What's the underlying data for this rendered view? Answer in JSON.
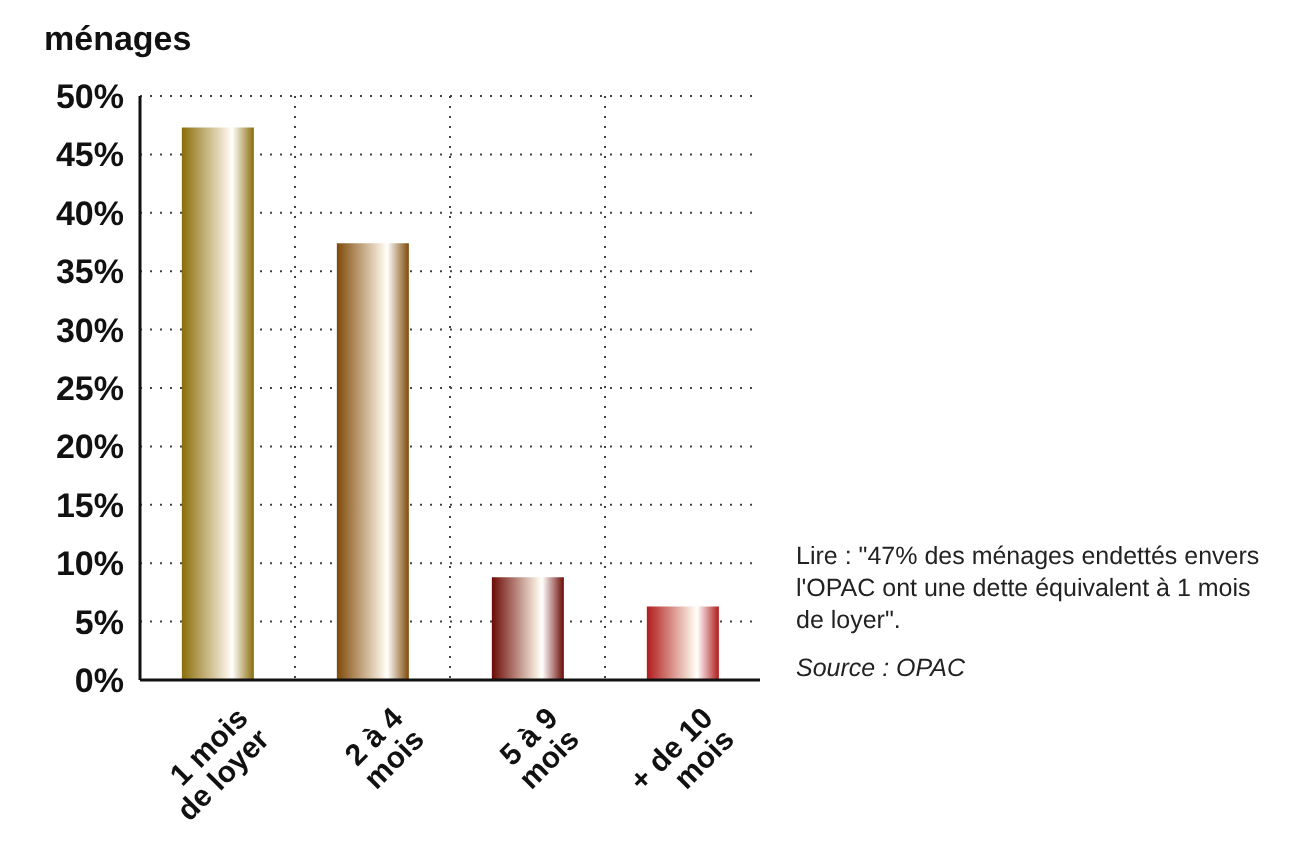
{
  "chart_data": {
    "type": "bar",
    "ylabel": "ménages",
    "categories": [
      "1 mois de loyer",
      "2 à 4 mois",
      "5 à 9 mois",
      "+ de 10 mois"
    ],
    "values": [
      47.3,
      37.4,
      8.8,
      6.3
    ],
    "colors": [
      "#8a6d0a",
      "#7f4a08",
      "#6b0a05",
      "#b01c1c"
    ],
    "ylim": [
      0,
      50
    ],
    "yticks": [
      {
        "value": 0,
        "label": "0%"
      },
      {
        "value": 5,
        "label": "5%"
      },
      {
        "value": 10,
        "label": "10%"
      },
      {
        "value": 15,
        "label": "15%"
      },
      {
        "value": 20,
        "label": "20%"
      },
      {
        "value": 25,
        "label": "25%"
      },
      {
        "value": 30,
        "label": "30%"
      },
      {
        "value": 35,
        "label": "35%"
      },
      {
        "value": 40,
        "label": "40%"
      },
      {
        "value": 45,
        "label": "45%"
      },
      {
        "value": 50,
        "label": "50%"
      }
    ],
    "grid": true,
    "annotations": [
      "Lire : \"47% des ménages endettés envers l'OPAC  ont une dette équivalent à 1 mois de loyer\".",
      "Source : OPAC"
    ]
  }
}
